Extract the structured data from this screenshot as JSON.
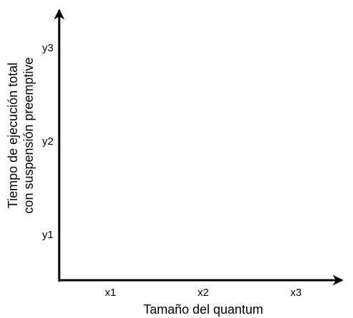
{
  "chart_data": {
    "type": "scatter",
    "title": "",
    "xlabel": "Tamaño del quantum",
    "ylabel_lines": [
      "Tiempo de ejecución total",
      "con suspensión preemptive"
    ],
    "x_ticks": [
      "x1",
      "x2",
      "x3"
    ],
    "y_ticks": [
      "y1",
      "y2",
      "y3"
    ],
    "series": [],
    "grid": false,
    "legend": "none"
  },
  "colors": {
    "axis": "#000000",
    "text": "#000000",
    "background": "#ffffff"
  }
}
